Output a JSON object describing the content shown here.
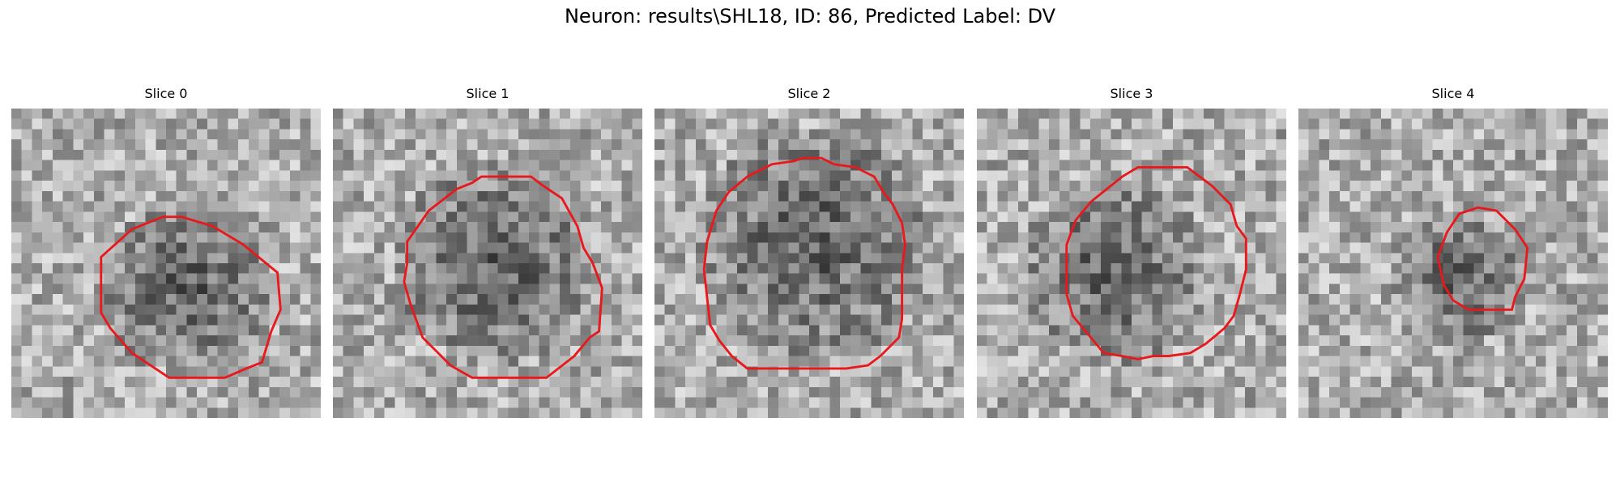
{
  "figure": {
    "title": "Neuron: results\\SHL18, ID: 86, Predicted Label: DV"
  },
  "colors": {
    "contour": "#e8191c",
    "background": "#ffffff",
    "colormap": "gray"
  },
  "slices": [
    {
      "label": "Slice 0",
      "dark_center": [
        0.56,
        0.58
      ],
      "dark_radius": 0.28,
      "contour": [
        [
          0.29,
          0.48
        ],
        [
          0.39,
          0.39
        ],
        [
          0.44,
          0.37
        ],
        [
          0.49,
          0.35
        ],
        [
          0.55,
          0.35
        ],
        [
          0.65,
          0.38
        ],
        [
          0.75,
          0.44
        ],
        [
          0.86,
          0.53
        ],
        [
          0.87,
          0.65
        ],
        [
          0.84,
          0.72
        ],
        [
          0.81,
          0.82
        ],
        [
          0.76,
          0.84
        ],
        [
          0.69,
          0.87
        ],
        [
          0.6,
          0.87
        ],
        [
          0.51,
          0.87
        ],
        [
          0.48,
          0.85
        ],
        [
          0.39,
          0.79
        ],
        [
          0.32,
          0.71
        ],
        [
          0.29,
          0.66
        ]
      ]
    },
    {
      "label": "Slice 1",
      "dark_center": [
        0.52,
        0.5
      ],
      "dark_radius": 0.33,
      "contour": [
        [
          0.24,
          0.43
        ],
        [
          0.31,
          0.33
        ],
        [
          0.4,
          0.26
        ],
        [
          0.45,
          0.24
        ],
        [
          0.48,
          0.22
        ],
        [
          0.57,
          0.22
        ],
        [
          0.64,
          0.22
        ],
        [
          0.68,
          0.25
        ],
        [
          0.74,
          0.29
        ],
        [
          0.79,
          0.38
        ],
        [
          0.81,
          0.45
        ],
        [
          0.84,
          0.5
        ],
        [
          0.87,
          0.58
        ],
        [
          0.86,
          0.72
        ],
        [
          0.83,
          0.74
        ],
        [
          0.78,
          0.8
        ],
        [
          0.69,
          0.87
        ],
        [
          0.56,
          0.87
        ],
        [
          0.45,
          0.87
        ],
        [
          0.38,
          0.83
        ],
        [
          0.29,
          0.74
        ],
        [
          0.25,
          0.63
        ],
        [
          0.23,
          0.56
        ],
        [
          0.24,
          0.5
        ]
      ]
    },
    {
      "label": "Slice 2",
      "dark_center": [
        0.52,
        0.43
      ],
      "dark_radius": 0.38,
      "contour": [
        [
          0.17,
          0.43
        ],
        [
          0.2,
          0.33
        ],
        [
          0.24,
          0.27
        ],
        [
          0.3,
          0.22
        ],
        [
          0.38,
          0.18
        ],
        [
          0.45,
          0.17
        ],
        [
          0.48,
          0.16
        ],
        [
          0.54,
          0.16
        ],
        [
          0.58,
          0.18
        ],
        [
          0.65,
          0.19
        ],
        [
          0.71,
          0.22
        ],
        [
          0.74,
          0.27
        ],
        [
          0.77,
          0.31
        ],
        [
          0.8,
          0.37
        ],
        [
          0.81,
          0.44
        ],
        [
          0.8,
          0.52
        ],
        [
          0.8,
          0.6
        ],
        [
          0.8,
          0.68
        ],
        [
          0.79,
          0.74
        ],
        [
          0.73,
          0.8
        ],
        [
          0.69,
          0.83
        ],
        [
          0.62,
          0.84
        ],
        [
          0.55,
          0.84
        ],
        [
          0.48,
          0.84
        ],
        [
          0.4,
          0.84
        ],
        [
          0.3,
          0.84
        ],
        [
          0.25,
          0.8
        ],
        [
          0.21,
          0.75
        ],
        [
          0.18,
          0.7
        ],
        [
          0.17,
          0.61
        ],
        [
          0.16,
          0.52
        ]
      ]
    },
    {
      "label": "Slice 3",
      "dark_center": [
        0.45,
        0.52
      ],
      "dark_radius": 0.3,
      "contour": [
        [
          0.29,
          0.44
        ],
        [
          0.32,
          0.36
        ],
        [
          0.37,
          0.3
        ],
        [
          0.42,
          0.26
        ],
        [
          0.47,
          0.22
        ],
        [
          0.52,
          0.19
        ],
        [
          0.58,
          0.19
        ],
        [
          0.68,
          0.19
        ],
        [
          0.76,
          0.25
        ],
        [
          0.82,
          0.31
        ],
        [
          0.84,
          0.38
        ],
        [
          0.87,
          0.42
        ],
        [
          0.87,
          0.52
        ],
        [
          0.85,
          0.6
        ],
        [
          0.83,
          0.67
        ],
        [
          0.8,
          0.71
        ],
        [
          0.74,
          0.76
        ],
        [
          0.69,
          0.79
        ],
        [
          0.62,
          0.8
        ],
        [
          0.57,
          0.8
        ],
        [
          0.52,
          0.81
        ],
        [
          0.47,
          0.8
        ],
        [
          0.41,
          0.79
        ],
        [
          0.36,
          0.73
        ],
        [
          0.31,
          0.67
        ],
        [
          0.29,
          0.6
        ],
        [
          0.29,
          0.51
        ]
      ]
    },
    {
      "label": "Slice 4",
      "dark_center": [
        0.52,
        0.55
      ],
      "dark_radius": 0.22,
      "contour": [
        [
          0.45,
          0.48
        ],
        [
          0.48,
          0.4
        ],
        [
          0.52,
          0.34
        ],
        [
          0.58,
          0.32
        ],
        [
          0.64,
          0.33
        ],
        [
          0.7,
          0.39
        ],
        [
          0.74,
          0.45
        ],
        [
          0.73,
          0.55
        ],
        [
          0.7,
          0.61
        ],
        [
          0.69,
          0.65
        ],
        [
          0.63,
          0.65
        ],
        [
          0.55,
          0.65
        ],
        [
          0.5,
          0.62
        ],
        [
          0.47,
          0.57
        ]
      ]
    }
  ]
}
